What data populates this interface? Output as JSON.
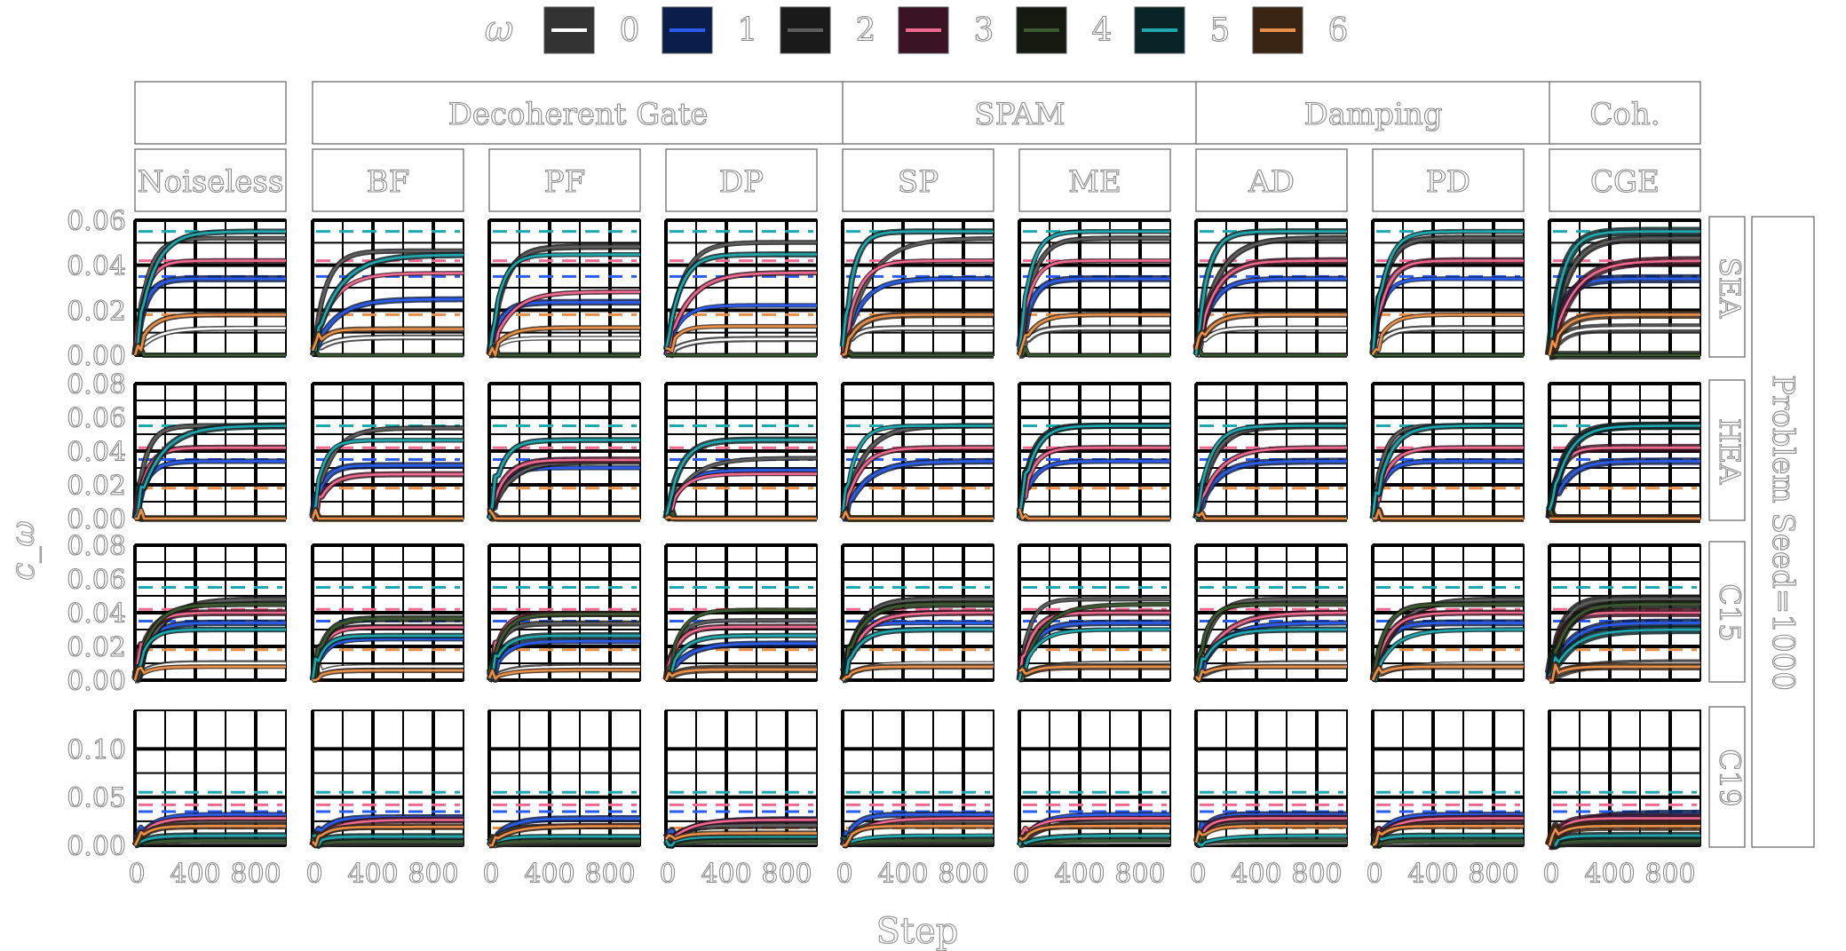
{
  "legend": {
    "title": "ω",
    "entries": [
      {
        "label": "0",
        "color": "#ffffff",
        "fill": "#333333"
      },
      {
        "label": "1",
        "color": "#2a5cf0",
        "fill": "#0b1d4a"
      },
      {
        "label": "2",
        "color": "#5e5e5e",
        "fill": "#1a1a1a"
      },
      {
        "label": "3",
        "color": "#f06a90",
        "fill": "#3a1422"
      },
      {
        "label": "4",
        "color": "#3c5a30",
        "fill": "#141a10"
      },
      {
        "label": "5",
        "color": "#20a8b0",
        "fill": "#082426"
      },
      {
        "label": "6",
        "color": "#e8904a",
        "fill": "#3a2414"
      }
    ]
  },
  "group_headers": [
    "",
    "Decoherent Gate",
    "SPAM",
    "Damping",
    "Coh."
  ],
  "columns": [
    "Noiseless",
    "BF",
    "PF",
    "DP",
    "SP",
    "ME",
    "AD",
    "PD",
    "CGE"
  ],
  "rows": [
    "SEA",
    "HEA",
    "C15",
    "C19"
  ],
  "facet_strip": "Problem Seed=1000",
  "xlabel": "Step",
  "ylabel": "c_ω",
  "chart_data": {
    "type": "line",
    "x_range": [
      0,
      1000
    ],
    "x_ticks": [
      "0",
      "400",
      "800"
    ],
    "panels": [
      {
        "row": "SEA",
        "ylim": [
          0,
          0.06
        ],
        "y_ticks": [
          "0.00",
          "0.02",
          "0.04",
          "0.06"
        ],
        "reference_dashed": [
          0.055,
          0.042,
          0.035,
          0.018
        ],
        "series_final": [
          {
            "omega": "0",
            "value": 0.012
          },
          {
            "omega": "1",
            "value": 0.034
          },
          {
            "omega": "2",
            "value": 0.052
          },
          {
            "omega": "3",
            "value": 0.042
          },
          {
            "omega": "4",
            "value": 0.0
          },
          {
            "omega": "5",
            "value": 0.055
          },
          {
            "omega": "6",
            "value": 0.018
          }
        ]
      },
      {
        "row": "HEA",
        "ylim": [
          0,
          0.08
        ],
        "y_ticks": [
          "0.00",
          "0.02",
          "0.04",
          "0.06",
          "0.08"
        ],
        "reference_dashed": [
          0.055,
          0.042,
          0.035,
          0.018
        ],
        "series_final": [
          {
            "omega": "0",
            "value": 0.0
          },
          {
            "omega": "1",
            "value": 0.034
          },
          {
            "omega": "2",
            "value": 0.055
          },
          {
            "omega": "3",
            "value": 0.042
          },
          {
            "omega": "4",
            "value": 0.0
          },
          {
            "omega": "5",
            "value": 0.055
          },
          {
            "omega": "6",
            "value": 0.0
          }
        ]
      },
      {
        "row": "C15",
        "ylim": [
          0,
          0.08
        ],
        "y_ticks": [
          "0.00",
          "0.02",
          "0.04",
          "0.06",
          "0.08"
        ],
        "reference_dashed": [
          0.055,
          0.042,
          0.035,
          0.018
        ],
        "series_final": [
          {
            "omega": "0",
            "value": 0.01
          },
          {
            "omega": "1",
            "value": 0.034
          },
          {
            "omega": "2",
            "value": 0.048
          },
          {
            "omega": "3",
            "value": 0.04
          },
          {
            "omega": "4",
            "value": 0.045
          },
          {
            "omega": "5",
            "value": 0.03
          },
          {
            "omega": "6",
            "value": 0.008
          }
        ]
      },
      {
        "row": "C19",
        "ylim": [
          0,
          0.14
        ],
        "y_ticks": [
          "0.00",
          "0.05",
          "0.10"
        ],
        "reference_dashed": [
          0.055,
          0.042,
          0.035,
          0.018
        ],
        "series_final": [
          {
            "omega": "0",
            "value": 0.003
          },
          {
            "omega": "1",
            "value": 0.032
          },
          {
            "omega": "2",
            "value": 0.025
          },
          {
            "omega": "3",
            "value": 0.028
          },
          {
            "omega": "4",
            "value": 0.005
          },
          {
            "omega": "5",
            "value": 0.01
          },
          {
            "omega": "6",
            "value": 0.02
          }
        ]
      }
    ]
  }
}
